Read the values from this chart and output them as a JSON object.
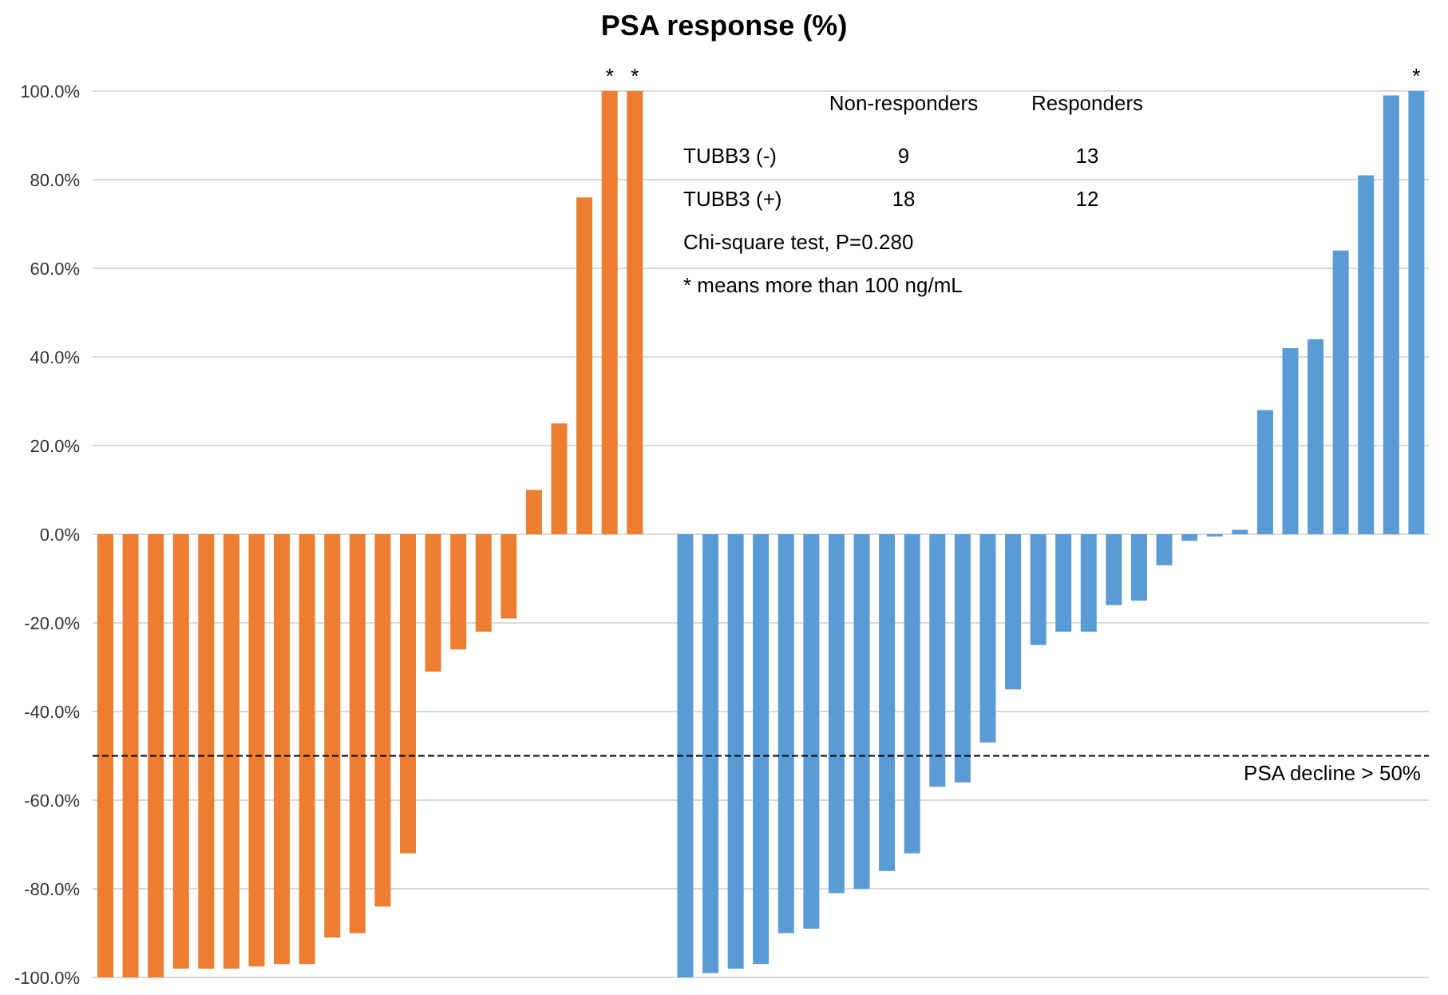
{
  "chart_data": {
    "type": "bar",
    "title": "PSA response (%)",
    "categories": [
      null,
      null,
      null,
      null,
      null,
      null,
      null,
      null,
      null,
      null,
      null,
      null,
      null,
      null,
      null,
      null,
      null,
      null,
      null,
      null,
      null,
      null,
      null,
      null,
      null,
      null,
      null,
      null,
      null,
      null,
      null,
      null,
      null,
      null,
      null,
      null,
      null,
      null,
      null,
      null,
      null,
      null,
      null,
      null,
      null,
      null,
      null,
      null,
      null,
      null,
      null,
      null,
      null
    ],
    "values": [
      -100,
      -100,
      -100,
      -98,
      -98,
      -98,
      -97.5,
      -97,
      -97,
      -91,
      -90,
      -84,
      -72,
      -31,
      -26,
      -22,
      -19,
      10,
      25,
      76,
      100,
      100,
      null,
      -100,
      -99,
      -98,
      -97,
      -90,
      -89,
      -81,
      -80,
      -76,
      -72,
      -57,
      -56,
      -47,
      -35,
      -25,
      -22,
      -22,
      -16,
      -15,
      -7,
      -1.5,
      -0.5,
      1,
      28,
      42,
      44,
      64,
      81,
      99,
      100
    ],
    "colors": [
      "#ed7d31",
      "#ed7d31",
      "#ed7d31",
      "#ed7d31",
      "#ed7d31",
      "#ed7d31",
      "#ed7d31",
      "#ed7d31",
      "#ed7d31",
      "#ed7d31",
      "#ed7d31",
      "#ed7d31",
      "#ed7d31",
      "#ed7d31",
      "#ed7d31",
      "#ed7d31",
      "#ed7d31",
      "#ed7d31",
      "#ed7d31",
      "#ed7d31",
      "#ed7d31",
      "#ed7d31",
      null,
      "#5b9bd5",
      "#5b9bd5",
      "#5b9bd5",
      "#5b9bd5",
      "#5b9bd5",
      "#5b9bd5",
      "#5b9bd5",
      "#5b9bd5",
      "#5b9bd5",
      "#5b9bd5",
      "#5b9bd5",
      "#5b9bd5",
      "#5b9bd5",
      "#5b9bd5",
      "#5b9bd5",
      "#5b9bd5",
      "#5b9bd5",
      "#5b9bd5",
      "#5b9bd5",
      "#5b9bd5",
      "#5b9bd5",
      "#5b9bd5",
      "#5b9bd5",
      "#5b9bd5",
      "#5b9bd5",
      "#5b9bd5",
      "#5b9bd5",
      "#5b9bd5",
      "#5b9bd5",
      "#5b9bd5"
    ],
    "value_labels": [
      null,
      null,
      null,
      null,
      null,
      null,
      null,
      null,
      null,
      null,
      null,
      null,
      null,
      null,
      null,
      null,
      null,
      null,
      null,
      null,
      "*",
      "*",
      null,
      null,
      null,
      null,
      null,
      null,
      null,
      null,
      null,
      null,
      null,
      null,
      null,
      null,
      null,
      null,
      null,
      null,
      null,
      null,
      null,
      null,
      null,
      null,
      null,
      null,
      null,
      null,
      null,
      null,
      "*"
    ],
    "ylim": [
      -100,
      100
    ],
    "yticks": [
      {
        "value": -100,
        "label": "-100.0%"
      },
      {
        "value": -80,
        "label": "-80.0%"
      },
      {
        "value": -60,
        "label": "-60.0%"
      },
      {
        "value": -40,
        "label": "-40.0%"
      },
      {
        "value": -20,
        "label": "-20.0%"
      },
      {
        "value": 0,
        "label": "0.0%"
      },
      {
        "value": 20,
        "label": "20.0%"
      },
      {
        "value": 40,
        "label": "40.0%"
      },
      {
        "value": 60,
        "label": "60.0%"
      },
      {
        "value": 80,
        "label": "80.0%"
      },
      {
        "value": 100,
        "label": "100.0%"
      }
    ],
    "grid": "y",
    "tick_labels": "y",
    "ref_lines": [
      {
        "axis": "y",
        "value": -50,
        "label": "PSA decline > 50%",
        "line_style": "dashed",
        "color": "#000000"
      }
    ],
    "annotations": [
      "Non-responders",
      "Responders",
      "TUBB3 (-)",
      "9",
      "13",
      "TUBB3 (+)",
      "18",
      "12",
      "Chi-square test, P=0.280",
      "* means more than 100 ng/mL"
    ]
  }
}
